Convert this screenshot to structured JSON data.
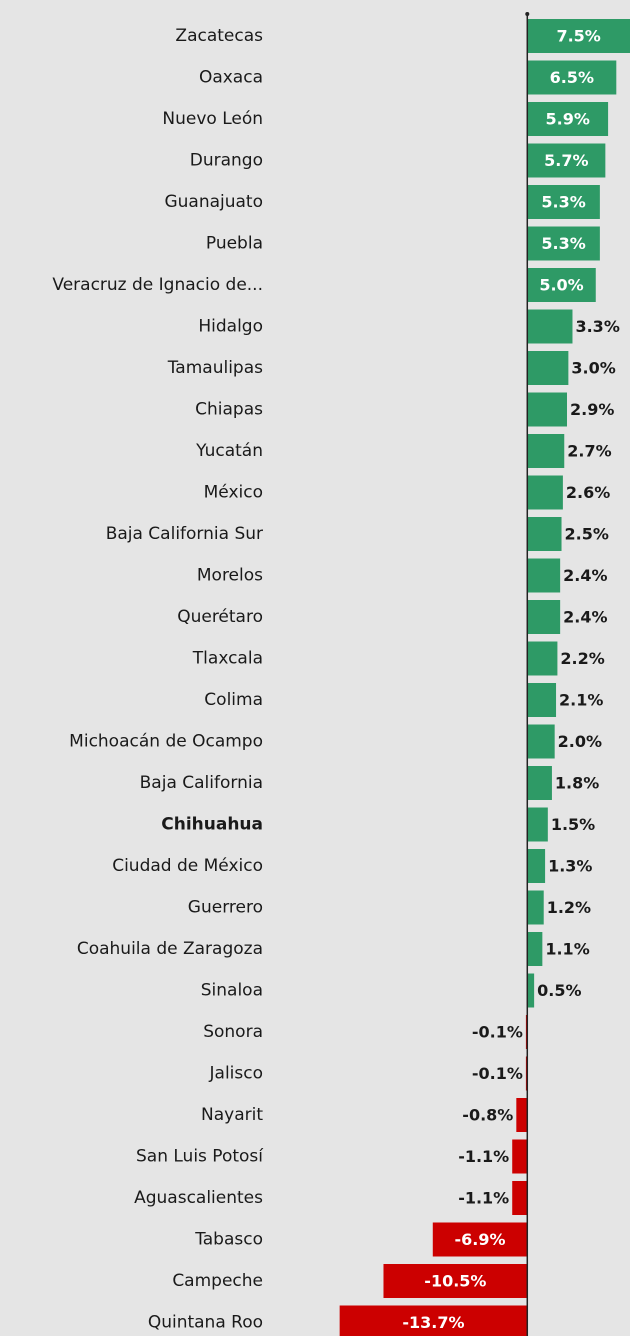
{
  "chart_data": {
    "type": "barh",
    "categories": [
      "Zacatecas",
      "Oaxaca",
      "Nuevo León",
      "Durango",
      "Guanajuato",
      "Puebla",
      "Veracruz de Ignacio de...",
      "Hidalgo",
      "Tamaulipas",
      "Chiapas",
      "Yucatán",
      "México",
      "Baja California Sur",
      "Morelos",
      "Querétaro",
      "Tlaxcala",
      "Colima",
      "Michoacán de Ocampo",
      "Baja California",
      "Chihuahua",
      "Ciudad de México",
      "Guerrero",
      "Coahuila de Zaragoza",
      "Sinaloa",
      "Sonora",
      "Jalisco",
      "Nayarit",
      "San Luis Potosí",
      "Aguascalientes",
      "Tabasco",
      "Campeche",
      "Quintana Roo"
    ],
    "values": [
      7.5,
      6.5,
      5.9,
      5.7,
      5.3,
      5.3,
      5.0,
      3.3,
      3.0,
      2.9,
      2.7,
      2.6,
      2.5,
      2.4,
      2.4,
      2.2,
      2.1,
      2.0,
      1.8,
      1.5,
      1.3,
      1.2,
      1.1,
      0.5,
      -0.1,
      -0.1,
      -0.8,
      -1.1,
      -1.1,
      -6.9,
      -10.5,
      -13.7
    ],
    "value_labels": [
      "7.5%",
      "6.5%",
      "5.9%",
      "5.7%",
      "5.3%",
      "5.3%",
      "5.0%",
      "3.3%",
      "3.0%",
      "2.9%",
      "2.7%",
      "2.6%",
      "2.5%",
      "2.4%",
      "2.4%",
      "2.2%",
      "2.1%",
      "2.0%",
      "1.8%",
      "1.5%",
      "1.3%",
      "1.2%",
      "1.1%",
      "0.5%",
      "-0.1%",
      "-0.1%",
      "-0.8%",
      "-1.1%",
      "-1.1%",
      "-6.9%",
      "-10.5%",
      "-13.7%"
    ],
    "color_positive": "#2e9a66",
    "color_negative": "#cc0000",
    "highlight_index": 19,
    "xlim": [
      -38.5,
      7.5
    ]
  }
}
